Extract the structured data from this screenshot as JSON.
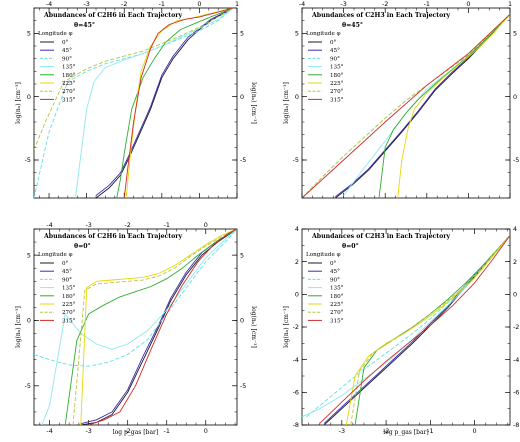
{
  "figure": {
    "colors": {
      "0°": "#1a1a2e",
      "45°": "#3a2fb0",
      "90°": "#5ee0e6",
      "135°": "#8ee8f0",
      "180°": "#2eae2e",
      "225°": "#e8d70a",
      "270°": "#b8c640",
      "315°": "#d22a2a"
    }
  },
  "chart_data": [
    {
      "type": "line",
      "title": "Abundances of C2H6 in Each Trajectory",
      "subtitle": "θ=45°",
      "xlabel": "",
      "ylabel": "log(nₓ) [cm⁻³]",
      "xlim": [
        -4.4,
        1.0
      ],
      "ylim": [
        -8.0,
        7.0
      ],
      "x_ticks": [
        "-4",
        "-3",
        "-2",
        "-1",
        "0",
        "1"
      ],
      "y_ticks": [
        "-5",
        "0",
        "5"
      ],
      "right_y_ticks": [
        "-5",
        "0",
        "5"
      ],
      "legend_title": "Longitude φ",
      "legend_labels": [
        "0°",
        "45°",
        "90°",
        "135°",
        "180°",
        "225°",
        "270°",
        "315°"
      ],
      "series": [
        {
          "name": "0°",
          "style": "solid",
          "x": [
            -2.75,
            -2.4,
            -2.1,
            -1.9,
            -1.6,
            -1.3,
            -1.0,
            -0.7,
            -0.3,
            0.0,
            0.3,
            0.9
          ],
          "y": [
            -8.0,
            -7.2,
            -6.2,
            -5.0,
            -3.0,
            -1.0,
            1.5,
            3.0,
            4.5,
            5.3,
            6.0,
            7.0
          ]
        },
        {
          "name": "45°",
          "style": "solid",
          "x": [
            -2.75,
            -2.4,
            -2.1,
            -1.9,
            -1.6,
            -1.3,
            -1.0,
            -0.7,
            -0.3,
            0.0,
            0.3,
            0.9
          ],
          "y": [
            -7.8,
            -7.0,
            -6.0,
            -4.8,
            -2.8,
            -0.8,
            1.7,
            3.2,
            4.7,
            5.4,
            6.1,
            7.0
          ]
        },
        {
          "name": "90°",
          "style": "dashed",
          "x": [
            -4.4,
            -4.0,
            -3.5,
            -3.0,
            -2.5,
            -2.0,
            -1.5,
            -1.0,
            -0.5,
            0.0,
            0.5,
            0.9
          ],
          "y": [
            -8.0,
            -2.8,
            1.2,
            2.0,
            2.6,
            3.0,
            3.4,
            4.0,
            4.6,
            5.2,
            6.0,
            7.0
          ]
        },
        {
          "name": "135°",
          "style": "solid",
          "x": [
            -3.3,
            -3.0,
            -2.8,
            -2.5,
            -2.0,
            -1.5,
            -1.0,
            -0.5,
            0.0,
            0.5,
            0.9
          ],
          "y": [
            -8.0,
            -1.0,
            1.2,
            2.3,
            2.9,
            3.4,
            4.0,
            4.7,
            5.4,
            6.1,
            7.0
          ]
        },
        {
          "name": "180°",
          "style": "solid",
          "x": [
            -2.2,
            -2.1,
            -2.0,
            -1.8,
            -1.5,
            -1.2,
            -0.9,
            -0.5,
            -0.1,
            0.3,
            0.9
          ],
          "y": [
            -8.0,
            -6.5,
            -4.5,
            -1.0,
            1.5,
            3.0,
            4.3,
            5.3,
            5.8,
            6.3,
            7.0
          ]
        },
        {
          "name": "225°",
          "style": "solid",
          "x": [
            -1.95,
            -1.85,
            -1.7,
            -1.55,
            -1.3,
            -1.0,
            -0.6,
            -0.2,
            0.2,
            0.9
          ],
          "y": [
            -8.0,
            -5.0,
            -1.0,
            2.0,
            4.0,
            5.2,
            6.0,
            6.2,
            6.5,
            7.0
          ]
        },
        {
          "name": "270°",
          "style": "dashed",
          "x": [
            -4.4,
            -4.1,
            -3.6,
            -3.0,
            -2.5,
            -2.0,
            -1.5,
            -1.0,
            -0.5,
            0.0,
            0.5,
            0.9
          ],
          "y": [
            -4.2,
            -2.0,
            1.2,
            2.2,
            2.8,
            3.2,
            3.6,
            4.2,
            4.8,
            5.5,
            6.3,
            7.0
          ]
        },
        {
          "name": "315°",
          "style": "solid",
          "x": [
            -2.0,
            -1.9,
            -1.75,
            -1.55,
            -1.3,
            -1.1,
            -0.8,
            -0.4,
            0.0,
            0.4,
            0.9
          ],
          "y": [
            -8.0,
            -5.5,
            -2.0,
            1.5,
            3.8,
            5.0,
            5.7,
            6.1,
            6.3,
            6.6,
            7.0
          ]
        }
      ]
    },
    {
      "type": "line",
      "title": "Abundances of C2H3 in Each Trajectory",
      "subtitle": "θ=45°",
      "xlabel": "",
      "ylabel": "log(nₓ) [cm⁻³]",
      "xlim": [
        -4.0,
        1.0
      ],
      "ylim": [
        -8.0,
        7.0
      ],
      "x_ticks": [
        "-4",
        "-3",
        "-2",
        "-1",
        "0",
        "1"
      ],
      "y_ticks": [
        "-5",
        "0",
        "5"
      ],
      "right_y_ticks": [
        "-5",
        "0",
        "5"
      ],
      "legend_title": "Longitude φ",
      "legend_labels": [
        "0°",
        "45°",
        "90°",
        "135°",
        "180°",
        "225°",
        "270°",
        "315°"
      ],
      "series": [
        {
          "name": "0°",
          "style": "solid",
          "x": [
            -3.2,
            -2.8,
            -2.4,
            -2.0,
            -1.6,
            -1.2,
            -0.8,
            -0.4,
            0.0,
            0.5,
            1.0
          ],
          "y": [
            -8.0,
            -7.0,
            -5.8,
            -4.3,
            -2.8,
            -1.2,
            0.5,
            1.8,
            3.0,
            4.7,
            6.5
          ]
        },
        {
          "name": "45°",
          "style": "solid",
          "x": [
            -3.2,
            -2.8,
            -2.4,
            -2.0,
            -1.6,
            -1.2,
            -0.8,
            -0.4,
            0.0,
            0.5,
            1.0
          ],
          "y": [
            -7.9,
            -6.9,
            -5.7,
            -4.2,
            -2.7,
            -1.1,
            0.6,
            1.9,
            3.1,
            4.8,
            6.5
          ]
        },
        {
          "name": "90°",
          "style": "dashed",
          "x": [
            -4.0,
            -3.5,
            -3.0,
            -2.5,
            -2.0,
            -1.5,
            -1.0,
            -0.5,
            0.0,
            0.5,
            1.0
          ],
          "y": [
            -8.0,
            -6.3,
            -4.7,
            -3.2,
            -1.7,
            -0.3,
            0.9,
            2.1,
            3.3,
            4.9,
            6.5
          ]
        },
        {
          "name": "135°",
          "style": "solid",
          "x": [
            -3.0,
            -2.5,
            -2.0,
            -1.5,
            -1.0,
            -0.5,
            0.0,
            0.5,
            1.0
          ],
          "y": [
            -7.8,
            -5.6,
            -3.5,
            -1.3,
            0.6,
            1.9,
            3.2,
            4.8,
            6.5
          ]
        },
        {
          "name": "180°",
          "style": "solid",
          "x": [
            -2.15,
            -2.0,
            -1.8,
            -1.5,
            -1.2,
            -0.8,
            -0.4,
            0.0,
            0.5,
            1.0
          ],
          "y": [
            -8.0,
            -4.0,
            -2.6,
            -1.3,
            -0.2,
            1.0,
            2.1,
            3.2,
            4.8,
            6.5
          ]
        },
        {
          "name": "225°",
          "style": "solid",
          "x": [
            -1.7,
            -1.6,
            -1.45,
            -1.3,
            -1.0,
            -0.6,
            -0.2,
            0.2,
            0.6,
            1.0
          ],
          "y": [
            -8.0,
            -5.0,
            -2.5,
            -1.0,
            0.3,
            1.5,
            2.6,
            3.7,
            5.0,
            6.5
          ]
        },
        {
          "name": "270°",
          "style": "dashed",
          "x": [
            -4.0,
            -3.5,
            -3.0,
            -2.5,
            -2.0,
            -1.5,
            -1.0,
            -0.5,
            0.0,
            0.5,
            1.0
          ],
          "y": [
            -8.0,
            -6.3,
            -4.7,
            -3.2,
            -1.7,
            -0.3,
            0.9,
            2.1,
            3.3,
            4.9,
            6.5
          ]
        },
        {
          "name": "315°",
          "style": "solid",
          "x": [
            -4.0,
            -3.0,
            -2.0,
            -1.0,
            0.0,
            1.0
          ],
          "y": [
            -8.0,
            -5.0,
            -2.0,
            0.9,
            3.4,
            6.5
          ]
        }
      ]
    },
    {
      "type": "line",
      "title": "Abundances of C2H6 in Each Trajectory",
      "subtitle": "θ=0°",
      "xlabel": "log p_gas [bar]",
      "ylabel": "log(nₓ) [cm⁻³]",
      "xlim": [
        -4.4,
        0.8
      ],
      "ylim": [
        -8.0,
        7.0
      ],
      "x_ticks": [
        "-4",
        "-3",
        "-2",
        "-1",
        "0"
      ],
      "y_ticks": [
        "-5",
        "0",
        "5"
      ],
      "right_y_ticks": [
        "-5",
        "0",
        "5"
      ],
      "legend_title": "Longitude φ",
      "legend_labels": [
        "0°",
        "45°",
        "90°",
        "135°",
        "180°",
        "225°",
        "270°",
        "315°"
      ],
      "series": [
        {
          "name": "0°",
          "style": "solid",
          "x": [
            -3.2,
            -2.8,
            -2.4,
            -2.0,
            -1.6,
            -1.2,
            -0.9,
            -0.5,
            -0.1,
            0.3,
            0.8
          ],
          "y": [
            -8.0,
            -7.8,
            -7.2,
            -5.5,
            -3.0,
            -0.5,
            1.5,
            3.5,
            5.0,
            6.0,
            7.0
          ]
        },
        {
          "name": "45°",
          "style": "solid",
          "x": [
            -3.2,
            -2.8,
            -2.4,
            -2.0,
            -1.6,
            -1.2,
            -0.9,
            -0.5,
            -0.1,
            0.3,
            0.8
          ],
          "y": [
            -7.9,
            -7.6,
            -7.0,
            -5.3,
            -2.7,
            -0.3,
            1.7,
            3.7,
            5.2,
            6.1,
            7.0
          ]
        },
        {
          "name": "90°",
          "style": "dashed",
          "x": [
            -4.4,
            -4.0,
            -3.5,
            -3.0,
            -2.5,
            -2.0,
            -1.5,
            -1.0,
            -0.5,
            0.0,
            0.5,
            0.8
          ],
          "y": [
            -2.6,
            -3.0,
            -3.4,
            -3.5,
            -3.2,
            -2.6,
            -1.5,
            0.5,
            2.5,
            4.5,
            6.0,
            7.0
          ]
        },
        {
          "name": "135°",
          "style": "solid",
          "x": [
            -4.2,
            -4.0,
            -3.6,
            -3.2,
            -2.8,
            -2.4,
            -2.0,
            -1.5,
            -1.0,
            -0.5,
            0.0,
            0.5,
            0.8
          ],
          "y": [
            -8.0,
            -6.5,
            0.5,
            -1.0,
            -1.8,
            -2.2,
            -1.8,
            -0.8,
            0.8,
            2.8,
            4.8,
            6.2,
            7.0
          ]
        },
        {
          "name": "180°",
          "style": "solid",
          "x": [
            -3.6,
            -3.3,
            -3.0,
            -2.6,
            -2.2,
            -1.8,
            -1.4,
            -1.0,
            -0.6,
            -0.2,
            0.3,
            0.8
          ],
          "y": [
            -8.0,
            -1.5,
            0.5,
            1.2,
            1.8,
            2.2,
            2.6,
            3.2,
            4.0,
            5.0,
            6.1,
            7.0
          ]
        },
        {
          "name": "225°",
          "style": "solid",
          "x": [
            -3.2,
            -3.05,
            -2.8,
            -2.4,
            -2.0,
            -1.6,
            -1.2,
            -0.8,
            -0.4,
            0.0,
            0.4,
            0.8
          ],
          "y": [
            -8.0,
            2.5,
            3.0,
            3.1,
            3.2,
            3.3,
            3.6,
            4.2,
            5.0,
            5.8,
            6.5,
            7.0
          ]
        },
        {
          "name": "270°",
          "style": "dashed",
          "x": [
            -3.4,
            -3.1,
            -2.8,
            -2.4,
            -2.0,
            -1.6,
            -1.2,
            -0.8,
            -0.4,
            0.0,
            0.4,
            0.8
          ],
          "y": [
            -8.0,
            2.3,
            2.8,
            2.9,
            3.0,
            3.1,
            3.4,
            4.0,
            4.9,
            5.7,
            6.4,
            7.0
          ]
        },
        {
          "name": "315°",
          "style": "solid",
          "x": [
            -3.0,
            -2.6,
            -2.2,
            -1.8,
            -1.4,
            -1.0,
            -0.6,
            -0.2,
            0.2,
            0.6,
            0.8
          ],
          "y": [
            -8.0,
            -7.6,
            -7.0,
            -5.0,
            -2.2,
            0.5,
            2.7,
            4.5,
            5.8,
            6.7,
            7.0
          ]
        }
      ]
    },
    {
      "type": "line",
      "title": "Abundances of C2H3 in Each Trajectory",
      "subtitle": "θ=0°",
      "xlabel": "log p_gas [bar]",
      "ylabel": "log(nₓ) [cm⁻³]",
      "xlim": [
        -3.9,
        0.8
      ],
      "ylim": [
        -8.0,
        4.0
      ],
      "x_ticks": [
        "-3",
        "-2",
        "-1",
        "0"
      ],
      "y_ticks": [
        "-8",
        "-6",
        "-4",
        "-2",
        "0",
        "2",
        "4"
      ],
      "right_y_ticks": [
        "-8",
        "-6",
        "-4",
        "-2",
        "0",
        "2",
        "4"
      ],
      "legend_title": "Longitude φ",
      "legend_labels": [
        "0°",
        "45°",
        "90°",
        "135°",
        "180°",
        "225°",
        "270°",
        "315°"
      ],
      "series": [
        {
          "name": "0°",
          "style": "solid",
          "x": [
            -3.4,
            -3.0,
            -2.6,
            -2.2,
            -1.8,
            -1.4,
            -1.0,
            -0.6,
            -0.2,
            0.2,
            0.8
          ],
          "y": [
            -8.0,
            -7.0,
            -6.0,
            -5.0,
            -4.0,
            -3.0,
            -1.9,
            -0.8,
            0.5,
            1.7,
            3.6
          ]
        },
        {
          "name": "45°",
          "style": "solid",
          "x": [
            -3.4,
            -3.0,
            -2.6,
            -2.2,
            -1.8,
            -1.4,
            -1.0,
            -0.6,
            -0.2,
            0.2,
            0.8
          ],
          "y": [
            -7.9,
            -6.9,
            -5.9,
            -4.9,
            -3.9,
            -2.9,
            -1.8,
            -0.7,
            0.6,
            1.8,
            3.6
          ]
        },
        {
          "name": "90°",
          "style": "dashed",
          "x": [
            -3.8,
            -3.4,
            -3.0,
            -2.6,
            -2.2,
            -1.8,
            -1.4,
            -1.0,
            -0.6,
            -0.2,
            0.2,
            0.8
          ],
          "y": [
            -7.5,
            -6.6,
            -5.7,
            -4.8,
            -4.0,
            -3.2,
            -2.4,
            -1.5,
            -0.5,
            0.6,
            1.8,
            3.6
          ]
        },
        {
          "name": "135°",
          "style": "solid",
          "x": [
            -3.9,
            -3.5,
            -3.0,
            -2.5,
            -2.0,
            -1.5,
            -1.0,
            -0.5,
            0.0,
            0.4,
            0.8
          ],
          "y": [
            -7.5,
            -7.0,
            -6.2,
            -5.2,
            -4.2,
            -3.0,
            -1.7,
            -0.4,
            1.0,
            2.3,
            3.6
          ]
        },
        {
          "name": "180°",
          "style": "solid",
          "x": [
            -2.7,
            -2.5,
            -2.2,
            -1.8,
            -1.4,
            -1.0,
            -0.6,
            -0.2,
            0.2,
            0.8
          ],
          "y": [
            -8.0,
            -4.5,
            -3.4,
            -2.7,
            -2.0,
            -1.2,
            -0.3,
            0.7,
            1.8,
            3.6
          ]
        },
        {
          "name": "225°",
          "style": "solid",
          "x": [
            -2.9,
            -2.7,
            -2.4,
            -2.0,
            -1.6,
            -1.2,
            -0.8,
            -0.4,
            0.0,
            0.4,
            0.8
          ],
          "y": [
            -8.0,
            -5.0,
            -3.8,
            -3.0,
            -2.4,
            -1.7,
            -0.9,
            0.0,
            1.0,
            2.3,
            3.6
          ]
        },
        {
          "name": "270°",
          "style": "dashed",
          "x": [
            -2.8,
            -2.6,
            -2.3,
            -1.9,
            -1.5,
            -1.1,
            -0.7,
            -0.3,
            0.1,
            0.5,
            0.8
          ],
          "y": [
            -8.0,
            -4.7,
            -3.6,
            -2.9,
            -2.2,
            -1.4,
            -0.6,
            0.3,
            1.4,
            2.7,
            3.6
          ]
        },
        {
          "name": "315°",
          "style": "solid",
          "x": [
            -3.5,
            -3.0,
            -2.5,
            -2.0,
            -1.5,
            -1.0,
            -0.5,
            0.0,
            0.4,
            0.8
          ],
          "y": [
            -7.9,
            -6.6,
            -5.3,
            -4.1,
            -3.0,
            -1.9,
            -0.7,
            0.7,
            2.1,
            3.6
          ]
        }
      ]
    }
  ]
}
